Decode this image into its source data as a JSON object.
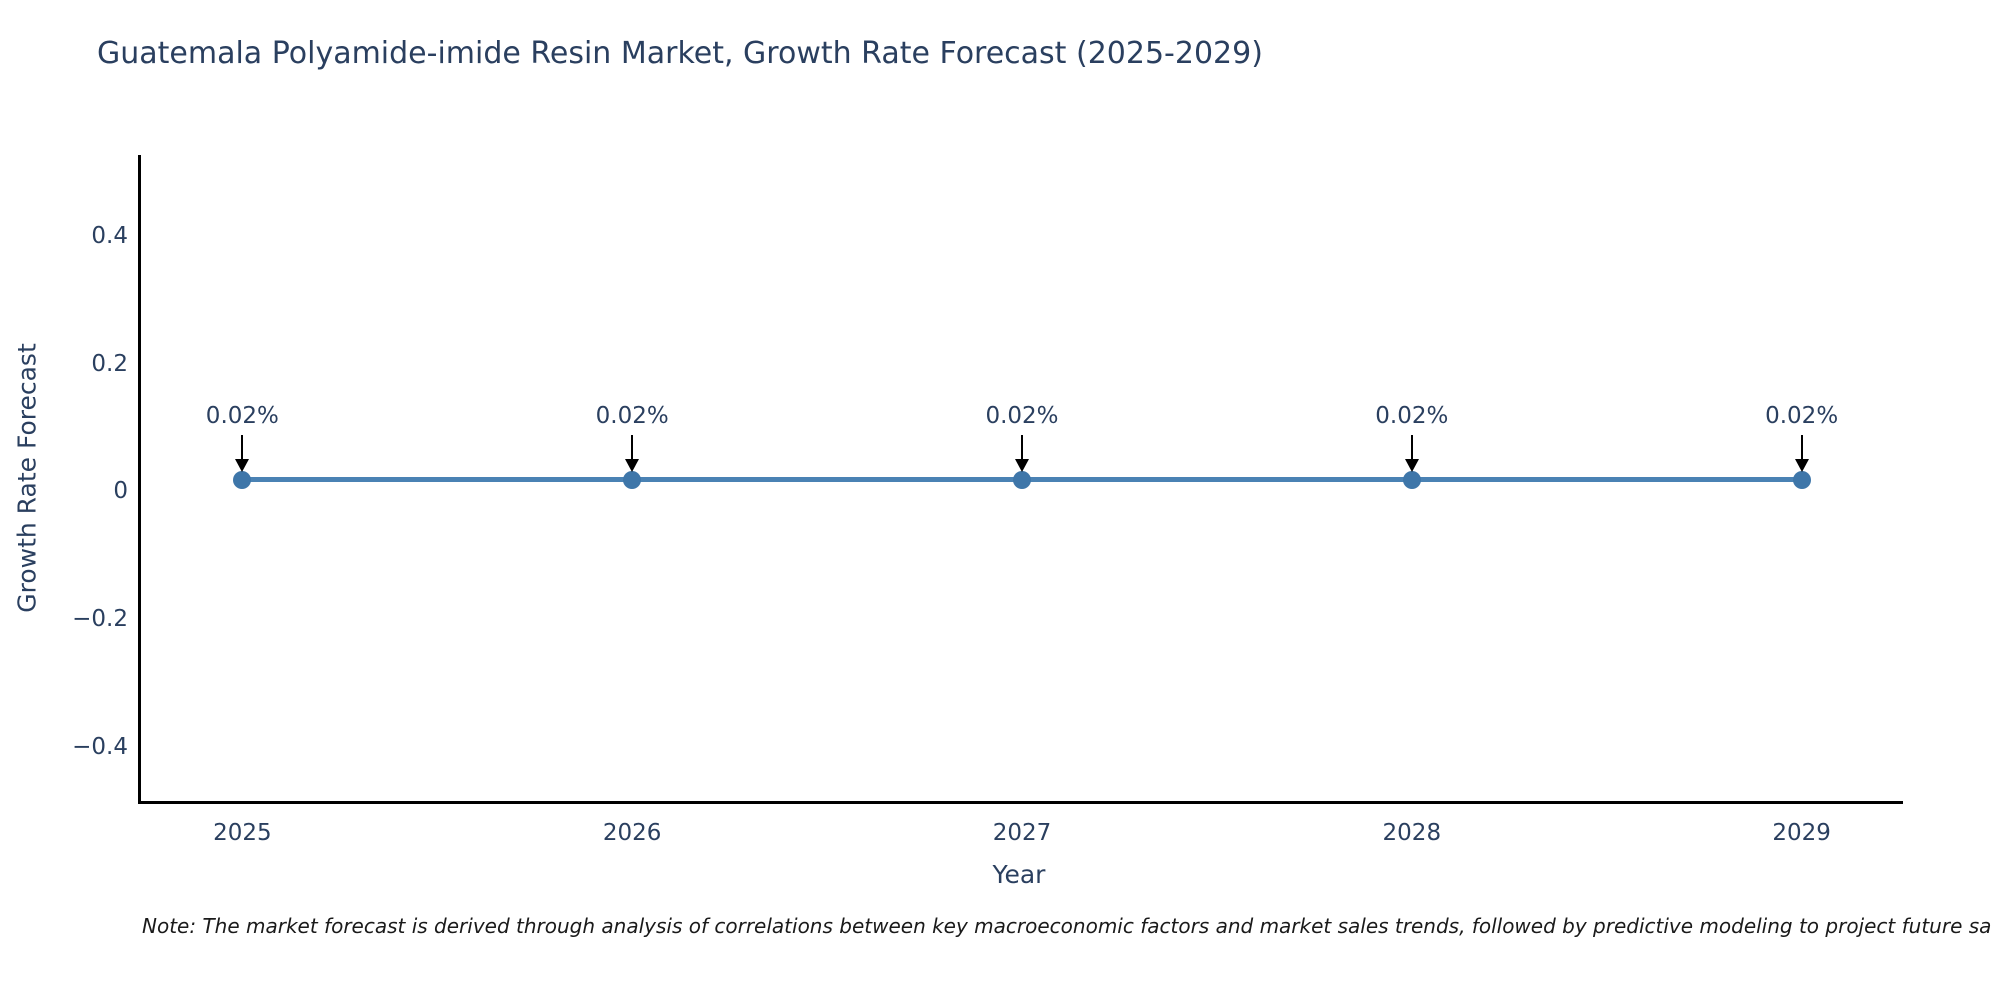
{
  "header": {
    "title": "Guatemala Polyamide-imide Resin Market, Growth Rate Forecast (2025-2029)"
  },
  "chart_data": {
    "type": "line",
    "title": "Guatemala Polyamide-imide Resin Market, Growth Rate Forecast (2025-2029)",
    "xlabel": "Year",
    "ylabel": "Growth Rate Forecast",
    "x": [
      2025,
      2026,
      2027,
      2028,
      2029
    ],
    "series": [
      {
        "name": "Growth Rate Forecast",
        "values": [
          0.02,
          0.02,
          0.02,
          0.02,
          0.02
        ]
      }
    ],
    "point_labels": [
      "0.02%",
      "0.02%",
      "0.02%",
      "0.02%",
      "0.02%"
    ],
    "xtick_labels": [
      "2025",
      "2026",
      "2027",
      "2028",
      "2029"
    ],
    "ytick_values": [
      0.4,
      0.2,
      0,
      -0.2,
      -0.4
    ],
    "ytick_labels": [
      "0.4",
      "0.2",
      "0",
      "−0.2",
      "−0.4"
    ],
    "xlim": [
      2024.74,
      2029.26
    ],
    "ylim": [
      -0.483,
      0.528
    ],
    "grid": false,
    "legend_position": "none",
    "colors": {
      "line": "#4a82b4",
      "marker": "#3e76a9",
      "arrow": "#000000",
      "text": "#2a3f5f"
    }
  },
  "footer": {
    "note": "Note: The market forecast is derived through analysis of correlations between key macroeconomic factors and market sales trends, followed by predictive modeling to project future sa"
  }
}
